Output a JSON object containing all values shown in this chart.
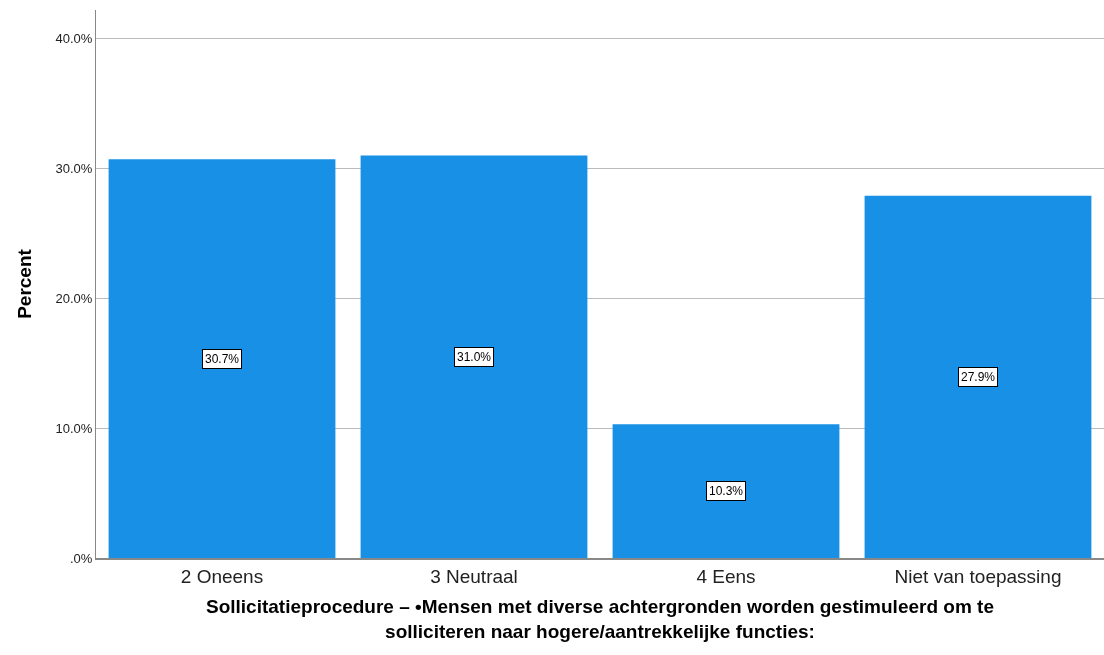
{
  "chart_data": {
    "type": "bar",
    "xlabel": "Sollicitatieprocedure – •Mensen met diverse achtergronden worden gestimuleerd om te solliciteren naar hogere/aantrekkelijke functies:",
    "ylabel": "Percent",
    "categories": [
      "2 Oneens",
      "3 Neutraal",
      "4 Eens",
      "Niet van toepassing"
    ],
    "values": [
      30.7,
      31.0,
      10.3,
      27.9
    ],
    "value_labels": [
      "30.7%",
      "31.0%",
      "10.3%",
      "27.9%"
    ],
    "color": "#1790e5",
    "ylim": [
      0,
      42.2
    ],
    "yticks": [
      {
        "value": 0,
        "label": ".0%"
      },
      {
        "value": 10,
        "label": "10.0%"
      },
      {
        "value": 20,
        "label": "20.0%"
      },
      {
        "value": 30,
        "label": "30.0%"
      },
      {
        "value": 40,
        "label": "40.0%"
      }
    ],
    "grid": "y"
  }
}
